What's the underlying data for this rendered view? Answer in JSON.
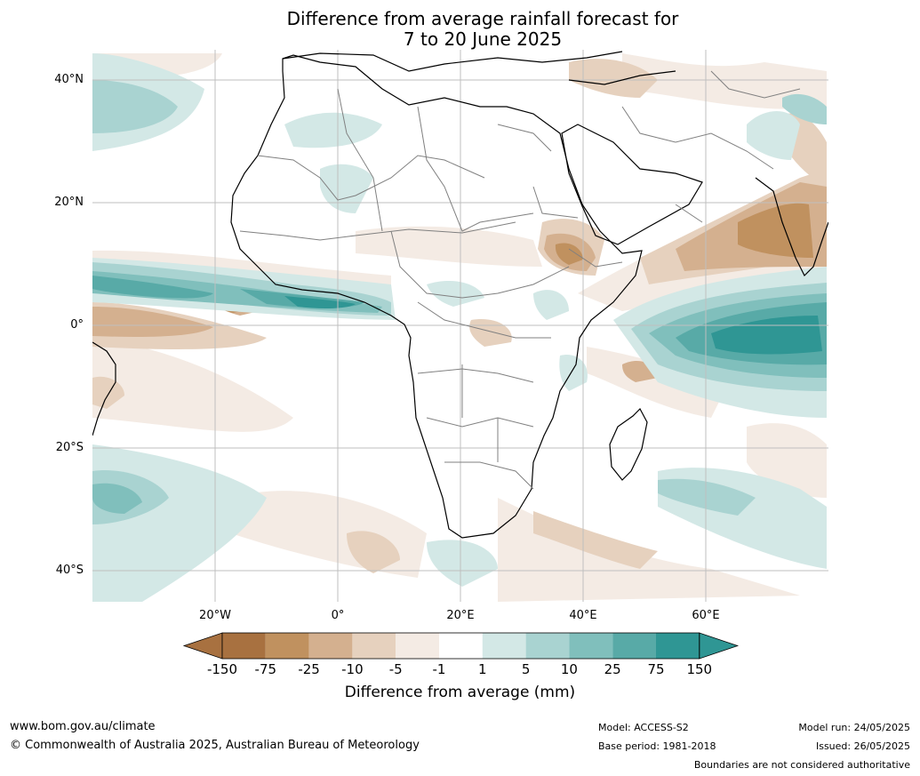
{
  "title": {
    "line1": "Difference from average rainfall forecast for",
    "line2": "7 to 20 June 2025"
  },
  "map": {
    "lat_labels": [
      "40°N",
      "20°N",
      "0°",
      "20°S",
      "40°S"
    ],
    "lon_labels": [
      "20°W",
      "0°",
      "20°E",
      "40°E",
      "60°E"
    ],
    "lat_range": [
      -45,
      44
    ],
    "lon_range": [
      -40,
      80
    ],
    "grid": true
  },
  "legend": {
    "ticks": [
      "-150",
      "-75",
      "-25",
      "-10",
      "-5",
      "-1",
      "1",
      "5",
      "10",
      "25",
      "75",
      "150"
    ],
    "colors": [
      "#a87140",
      "#c0915f",
      "#d4b08f",
      "#e6d1be",
      "#f4ebe4",
      "#ffffff",
      "#d3e8e6",
      "#a9d3d1",
      "#80bfbc",
      "#58aaa7",
      "#2f9694"
    ],
    "underflow_color": "#a87140",
    "overflow_color": "#2f9694",
    "label": "Difference from average (mm)"
  },
  "colors": {
    "coast": "#000000",
    "borders": "#808080",
    "grid": "#bfbfbf"
  },
  "footer": {
    "url": "www.bom.gov.au/climate",
    "copyright": "© Commonwealth of Australia 2025, Australian Bureau of Meteorology",
    "model": "Model: ACCESS-S2",
    "base_period": "Base period: 1981-2018",
    "model_run": "Model run: 24/05/2025",
    "issued": "Issued: 26/05/2025",
    "disclaimer": "Boundaries are not considered authoritative"
  }
}
